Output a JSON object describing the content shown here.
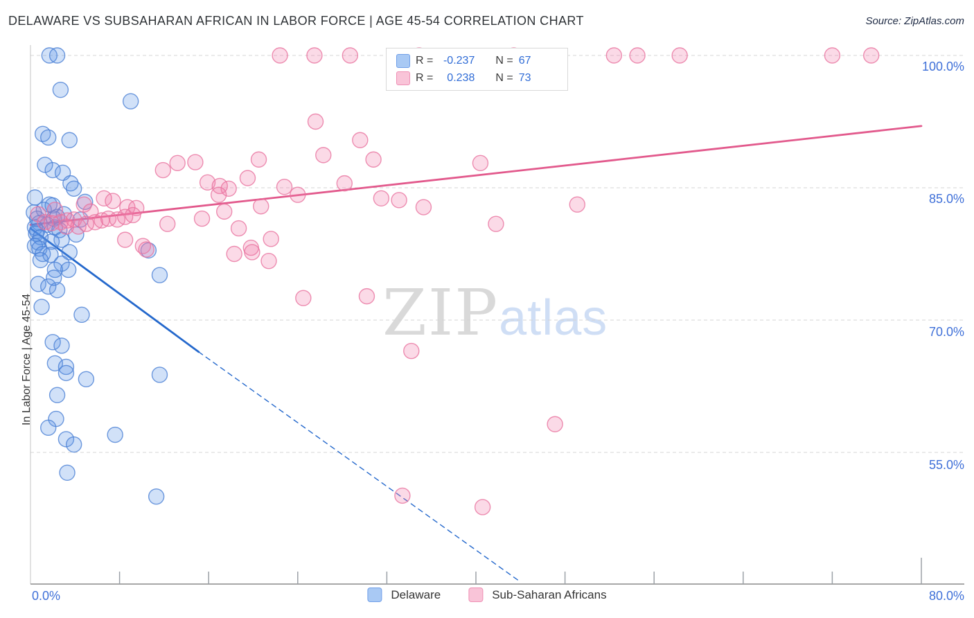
{
  "header": {
    "title": "DELAWARE VS SUBSAHARAN AFRICAN IN LABOR FORCE | AGE 45-54 CORRELATION CHART",
    "source": "Source: ZipAtlas.com"
  },
  "watermark": {
    "zip": "ZIP",
    "atlas": "atlas"
  },
  "axes": {
    "y_label": "In Labor Force | Age 45-54",
    "y_tick_labels": {
      "t100": "100.0%",
      "t85": "85.0%",
      "t70": "70.0%",
      "t55": "55.0%"
    },
    "x_min_label": "0.0%",
    "x_max_label": "80.0%"
  },
  "legend_box": {
    "rows": [
      {
        "r_label": "R =",
        "r_value": "-0.237",
        "n_label": "N =",
        "n_value": "67"
      },
      {
        "r_label": "R =",
        "r_value": "0.238",
        "n_label": "N =",
        "n_value": "73"
      }
    ]
  },
  "bottom_legend": {
    "series1": "Delaware",
    "series2": "Sub-Saharan Africans"
  },
  "colors": {
    "blue_fill": "#5b93e5",
    "blue_stroke": "#4a80d4",
    "pink_fill": "#f07ba8",
    "pink_stroke": "#e8739f",
    "blue_trend": "#2468cc",
    "pink_trend": "#e2598c",
    "grid": "#d4d4d4",
    "axis": "#8a8a8a",
    "tick": "#9aa0a6",
    "tick_label_blue": "#3e6fd8"
  },
  "chart_data": {
    "type": "scatter",
    "title": "DELAWARE VS SUBSAHARAN AFRICAN IN LABOR FORCE | AGE 45-54 CORRELATION CHART",
    "xlabel": "",
    "ylabel": "In Labor Force | Age 45-54",
    "xlim": [
      0,
      80
    ],
    "ylim": [
      40,
      101.5
    ],
    "x_axis_format": "percent",
    "y_gridlines": [
      100,
      85,
      70,
      55
    ],
    "x_tick_step": 8,
    "x_tick_count": 10,
    "grid": "dashed-horizontal",
    "legend_position": "bottom-center",
    "series": [
      {
        "name": "Delaware",
        "r": -0.237,
        "n": 67,
        "points": [
          [
            1.7,
            100
          ],
          [
            2.4,
            100
          ],
          [
            2.7,
            96.1
          ],
          [
            9.0,
            94.8
          ],
          [
            1.1,
            91.1
          ],
          [
            1.6,
            90.7
          ],
          [
            3.5,
            90.4
          ],
          [
            1.3,
            87.6
          ],
          [
            2.0,
            87.0
          ],
          [
            2.9,
            86.7
          ],
          [
            3.6,
            85.5
          ],
          [
            3.9,
            84.9
          ],
          [
            0.4,
            83.9
          ],
          [
            1.7,
            83.1
          ],
          [
            4.9,
            83.4
          ],
          [
            3.0,
            82.0
          ],
          [
            0.3,
            82.2
          ],
          [
            1.2,
            82.5
          ],
          [
            2.0,
            83.0
          ],
          [
            0.6,
            81.5
          ],
          [
            0.8,
            81.0
          ],
          [
            2.1,
            81.5
          ],
          [
            2.4,
            81.7
          ],
          [
            4.5,
            81.4
          ],
          [
            1.5,
            80.8
          ],
          [
            4.1,
            79.7
          ],
          [
            0.4,
            80.5
          ],
          [
            2.2,
            80.5
          ],
          [
            0.6,
            80.1
          ],
          [
            0.5,
            79.8
          ],
          [
            2.6,
            80.2
          ],
          [
            0.9,
            79.4
          ],
          [
            2.8,
            79.1
          ],
          [
            1.9,
            78.9
          ],
          [
            0.7,
            78.8
          ],
          [
            0.4,
            78.4
          ],
          [
            0.8,
            78.1
          ],
          [
            3.5,
            77.7
          ],
          [
            1.1,
            77.5
          ],
          [
            1.8,
            77.4
          ],
          [
            10.6,
            77.9
          ],
          [
            2.8,
            76.4
          ],
          [
            3.4,
            75.7
          ],
          [
            2.2,
            75.7
          ],
          [
            0.9,
            76.8
          ],
          [
            11.6,
            75.1
          ],
          [
            0.7,
            74.1
          ],
          [
            1.6,
            73.8
          ],
          [
            2.4,
            73.4
          ],
          [
            2.1,
            74.8
          ],
          [
            1.0,
            71.5
          ],
          [
            4.6,
            70.6
          ],
          [
            2.0,
            67.5
          ],
          [
            2.8,
            67.1
          ],
          [
            11.6,
            63.8
          ],
          [
            2.2,
            65.1
          ],
          [
            3.2,
            64.7
          ],
          [
            3.2,
            64.0
          ],
          [
            5.0,
            63.3
          ],
          [
            2.4,
            61.5
          ],
          [
            2.3,
            58.8
          ],
          [
            1.6,
            57.8
          ],
          [
            3.2,
            56.5
          ],
          [
            3.9,
            55.9
          ],
          [
            7.6,
            57.0
          ],
          [
            3.3,
            52.7
          ],
          [
            11.3,
            50.0
          ]
        ]
      },
      {
        "name": "Sub-Saharan Africans",
        "r": 0.238,
        "n": 73,
        "points": [
          [
            22.4,
            100
          ],
          [
            25.5,
            100
          ],
          [
            28.7,
            100
          ],
          [
            34.9,
            100
          ],
          [
            43.4,
            100
          ],
          [
            52.4,
            100
          ],
          [
            54.5,
            100
          ],
          [
            58.3,
            100
          ],
          [
            72.0,
            100
          ],
          [
            75.5,
            100
          ],
          [
            25.6,
            92.5
          ],
          [
            29.6,
            90.4
          ],
          [
            26.3,
            88.7
          ],
          [
            30.8,
            88.2
          ],
          [
            20.5,
            88.2
          ],
          [
            40.4,
            87.8
          ],
          [
            11.9,
            87.0
          ],
          [
            13.2,
            87.8
          ],
          [
            14.8,
            87.9
          ],
          [
            19.5,
            86.1
          ],
          [
            15.9,
            85.6
          ],
          [
            17.0,
            85.2
          ],
          [
            22.8,
            85.1
          ],
          [
            28.2,
            85.5
          ],
          [
            17.8,
            84.9
          ],
          [
            16.9,
            84.2
          ],
          [
            24.0,
            84.2
          ],
          [
            31.5,
            83.8
          ],
          [
            33.1,
            83.6
          ],
          [
            35.3,
            82.8
          ],
          [
            20.7,
            82.9
          ],
          [
            17.4,
            82.3
          ],
          [
            49.1,
            83.1
          ],
          [
            6.6,
            83.8
          ],
          [
            7.4,
            83.5
          ],
          [
            4.8,
            83.1
          ],
          [
            8.7,
            82.8
          ],
          [
            9.5,
            82.7
          ],
          [
            12.3,
            80.9
          ],
          [
            15.4,
            81.5
          ],
          [
            18.7,
            80.4
          ],
          [
            41.8,
            80.9
          ],
          [
            0.7,
            82.0
          ],
          [
            1.3,
            81.1
          ],
          [
            1.9,
            81.0
          ],
          [
            2.2,
            82.5
          ],
          [
            2.7,
            81.1
          ],
          [
            3.3,
            81.3
          ],
          [
            3.9,
            81.4
          ],
          [
            3.2,
            80.6
          ],
          [
            4.3,
            80.6
          ],
          [
            5.0,
            80.9
          ],
          [
            5.8,
            81.1
          ],
          [
            6.4,
            81.3
          ],
          [
            7.0,
            81.5
          ],
          [
            7.8,
            81.4
          ],
          [
            8.5,
            81.7
          ],
          [
            9.2,
            81.9
          ],
          [
            5.4,
            82.3
          ],
          [
            8.5,
            79.1
          ],
          [
            10.1,
            78.4
          ],
          [
            10.4,
            78.0
          ],
          [
            21.6,
            79.2
          ],
          [
            19.8,
            78.2
          ],
          [
            18.3,
            77.5
          ],
          [
            19.9,
            77.7
          ],
          [
            21.4,
            76.7
          ],
          [
            24.5,
            72.5
          ],
          [
            30.2,
            72.7
          ],
          [
            34.2,
            66.5
          ],
          [
            47.1,
            58.2
          ],
          [
            33.4,
            50.1
          ],
          [
            40.6,
            48.8
          ]
        ]
      }
    ],
    "trend_lines": [
      {
        "series": "Delaware",
        "segments": [
          {
            "x1": 0,
            "y1": 80.4,
            "x2": 15.1,
            "y2": 66.4,
            "dashed": false
          },
          {
            "x1": 15.1,
            "y1": 66.4,
            "x2": 43.8,
            "y2": 40.5,
            "dashed": true
          }
        ]
      },
      {
        "series": "Sub-Saharan Africans",
        "segments": [
          {
            "x1": 0,
            "y1": 80.8,
            "x2": 80,
            "y2": 92.0,
            "dashed": false
          }
        ]
      }
    ]
  }
}
